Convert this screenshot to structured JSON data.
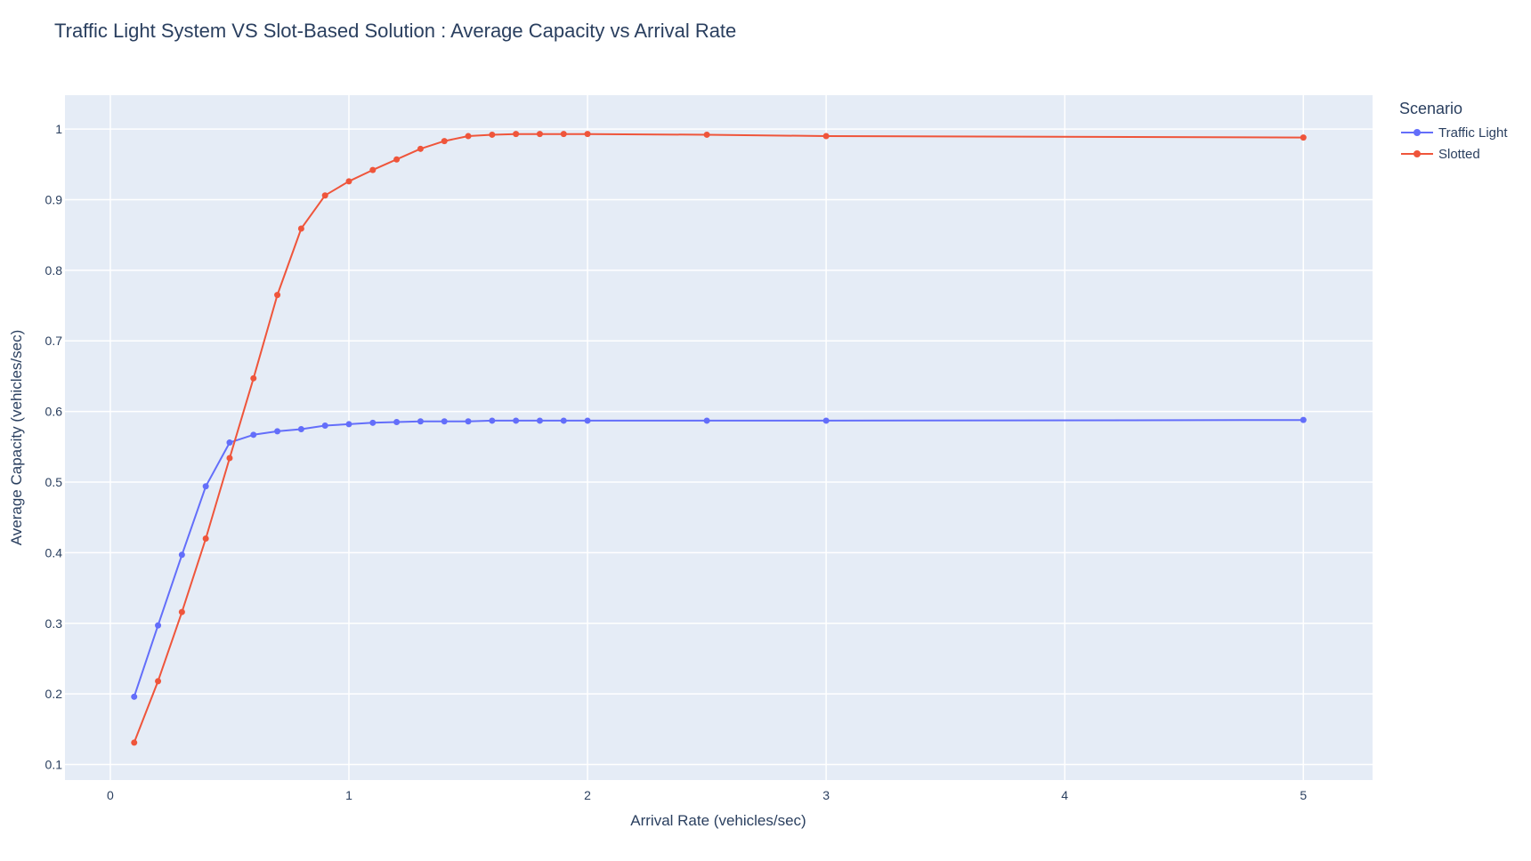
{
  "chart_data": {
    "type": "line",
    "title": "Traffic Light System VS Slot-Based Solution : Average Capacity vs Arrival Rate",
    "xlabel": "Arrival Rate (vehicles/sec)",
    "ylabel": "Average Capacity (vehicles/sec)",
    "xlim": [
      -0.19,
      5.29
    ],
    "ylim": [
      0.078,
      1.048
    ],
    "x_ticks": [
      0,
      1,
      2,
      3,
      4,
      5
    ],
    "y_ticks": [
      0.1,
      0.2,
      0.3,
      0.4,
      0.5,
      0.6,
      0.7,
      0.8,
      0.9,
      1
    ],
    "grid": true,
    "legend_title": "Scenario",
    "legend_position": "top-right outside",
    "background": "#e5ecf6",
    "series": [
      {
        "name": "Traffic Light",
        "color": "#636efa",
        "x": [
          0.1,
          0.2,
          0.3,
          0.4,
          0.5,
          0.6,
          0.7,
          0.8,
          0.9,
          1.0,
          1.1,
          1.2,
          1.3,
          1.4,
          1.5,
          1.6,
          1.7,
          1.8,
          1.9,
          2.0,
          2.5,
          3.0,
          5.0
        ],
        "y": [
          0.196,
          0.297,
          0.397,
          0.494,
          0.556,
          0.567,
          0.572,
          0.575,
          0.58,
          0.582,
          0.584,
          0.585,
          0.586,
          0.586,
          0.586,
          0.587,
          0.587,
          0.587,
          0.587,
          0.587,
          0.587,
          0.587,
          0.588
        ]
      },
      {
        "name": "Slotted",
        "color": "#ef553b",
        "x": [
          0.1,
          0.2,
          0.3,
          0.4,
          0.5,
          0.6,
          0.7,
          0.8,
          0.9,
          1.0,
          1.1,
          1.2,
          1.3,
          1.4,
          1.5,
          1.6,
          1.7,
          1.8,
          1.9,
          2.0,
          2.5,
          3.0,
          5.0
        ],
        "y": [
          0.131,
          0.218,
          0.316,
          0.42,
          0.534,
          0.647,
          0.765,
          0.859,
          0.906,
          0.926,
          0.942,
          0.957,
          0.972,
          0.983,
          0.99,
          0.992,
          0.993,
          0.993,
          0.993,
          0.993,
          0.992,
          0.99,
          0.988
        ]
      }
    ]
  }
}
